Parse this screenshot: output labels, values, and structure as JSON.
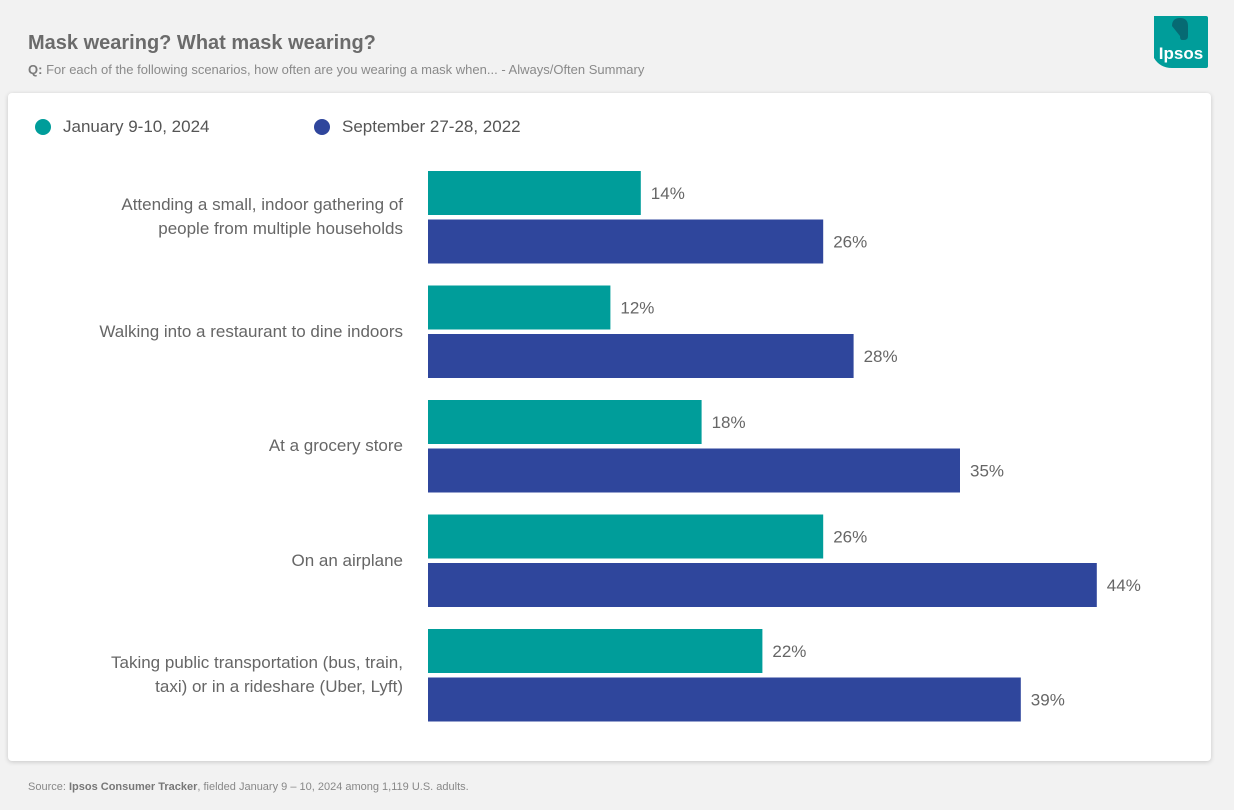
{
  "header": {
    "title": "Mask wearing? What mask wearing?",
    "subtitle_prefix": "Q:",
    "subtitle_text": "For each of the following scenarios, how often are you wearing a mask when... - Always/Often Summary",
    "logo_text": "Ipsos"
  },
  "footer": {
    "prefix": "Source:",
    "source": "Ipsos Consumer Tracker",
    "text": ", fielded January 9 – 10, 2024 among 1,119 U.S. adults."
  },
  "chart_data": {
    "type": "bar",
    "orientation": "horizontal",
    "categories": [
      "Attending a small, indoor gathering of people from multiple households",
      "Walking into a restaurant to dine indoors",
      "At a grocery store",
      "On an airplane",
      "Taking public transportation (bus, train, taxi) or in a rideshare (Uber, Lyft)"
    ],
    "category_lines": [
      [
        "Attending a small, indoor gathering of",
        "people from multiple households"
      ],
      [
        "Walking into a restaurant to dine indoors"
      ],
      [
        "At a grocery store"
      ],
      [
        "On an airplane"
      ],
      [
        "Taking public transportation (bus, train,",
        "taxi) or in a rideshare (Uber, Lyft)"
      ]
    ],
    "series": [
      {
        "name": "January 9-10, 2024",
        "color": "#009d9a",
        "values": [
          14,
          12,
          18,
          26,
          22
        ]
      },
      {
        "name": "September 27-28, 2022",
        "color": "#2f469c",
        "values": [
          26,
          28,
          35,
          44,
          39
        ]
      }
    ],
    "value_suffix": "%",
    "xlim": [
      0,
      50
    ],
    "grid": false,
    "legend_position": "top-left"
  },
  "colors": {
    "logo_bg": "#009d9a"
  }
}
